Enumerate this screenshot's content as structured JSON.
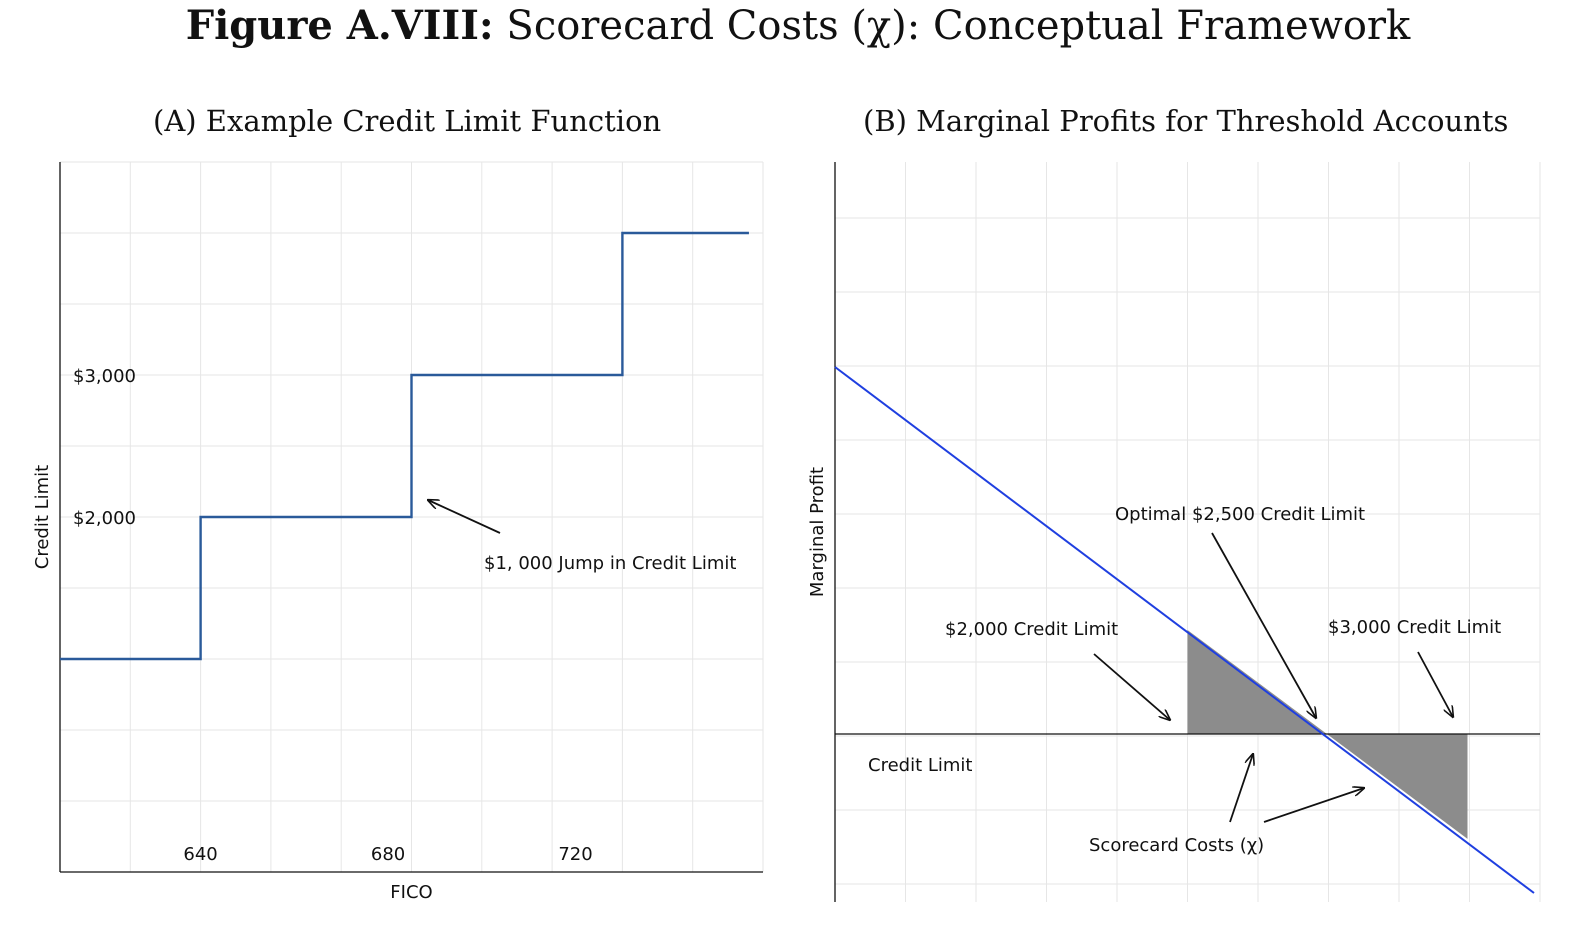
{
  "figure": {
    "label": "Figure A.VIII:",
    "title": "Scorecard Costs (χ): Conceptual Framework"
  },
  "colors": {
    "step_line": "#2a5a9a",
    "profit_line": "#1f3fe0",
    "shade": "#8c8c8c",
    "grid": "#e6e6e6",
    "axis": "#111111"
  },
  "chart_data": [
    {
      "type": "line",
      "title": "(A) Example Credit Limit Function",
      "xlabel": "FICO",
      "ylabel": "Credit Limit",
      "xlim": [
        610,
        760
      ],
      "ylim": [
        -500,
        4500
      ],
      "x_ticks": [
        {
          "value": 640,
          "label": "640"
        },
        {
          "value": 680,
          "label": "680"
        },
        {
          "value": 720,
          "label": "720"
        }
      ],
      "y_ticks": [
        {
          "value": 2000,
          "label": "$2,000"
        },
        {
          "value": 3000,
          "label": "$3,000"
        }
      ],
      "grid": true,
      "series": [
        {
          "values_x": [
            610,
            640,
            640,
            685,
            685,
            730,
            730,
            757
          ],
          "values_y": [
            1000,
            1000,
            2000,
            2000,
            3000,
            3000,
            4000,
            4000
          ]
        }
      ],
      "annotation": {
        "text": "$1, 000 Jump in Credit Limit",
        "x": 700,
        "y": 2500,
        "arrow_to_x": 685,
        "arrow_to_y": 2650
      }
    },
    {
      "type": "line",
      "title": "(B) Marginal Profits for Threshold Accounts",
      "xlabel": "Credit Limit",
      "ylabel": "Marginal Profit",
      "xlim": [
        0,
        10
      ],
      "ylim": [
        -5,
        10
      ],
      "grid": true,
      "series": [
        {
          "values_x": [
            0,
            10
          ],
          "values_y": [
            5,
            -2.14
          ]
        }
      ],
      "shaded_regions": [
        {
          "x_from": 5,
          "x_to": 7
        },
        {
          "x_from": 7,
          "x_to": 9
        }
      ],
      "annotations": [
        {
          "text": "Optimal $2,500 Credit Limit"
        },
        {
          "text": "$2,000 Credit Limit"
        },
        {
          "text": "$3,000 Credit Limit"
        },
        {
          "text": "Scorecard Costs (χ)"
        }
      ]
    }
  ]
}
